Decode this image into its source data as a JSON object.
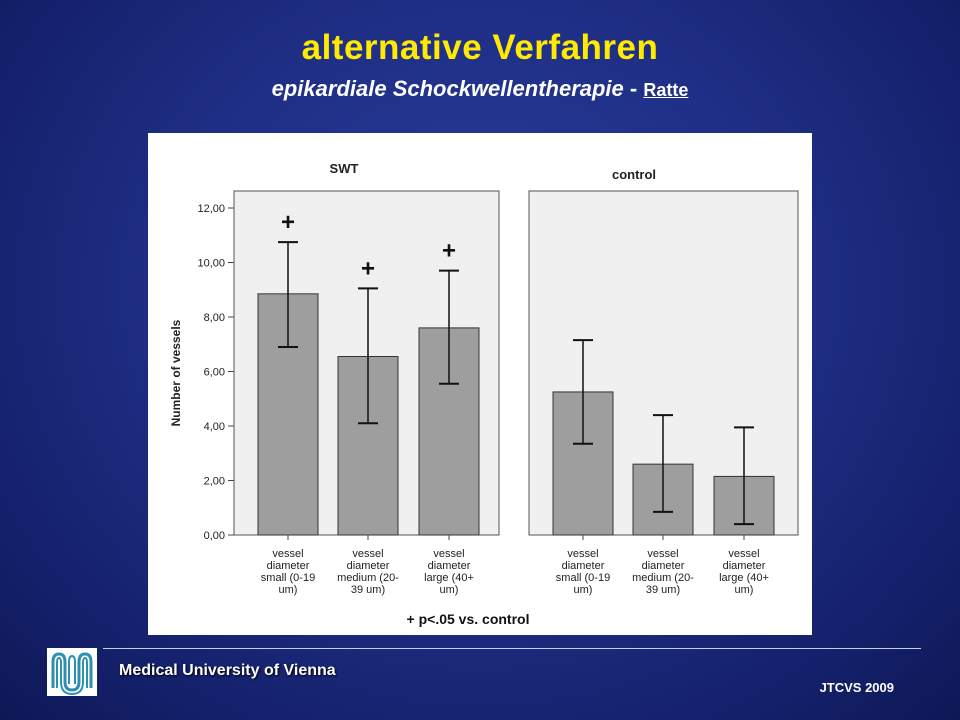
{
  "slide": {
    "title": "alternative Verfahren",
    "subtitle_main": "epikardiale Schockwellentherapie",
    "subtitle_sep": " - ",
    "subtitle_link": "Ratte",
    "footer_left": "Medical University of Vienna",
    "footer_right": "JTCVS 2009"
  },
  "chart_data": {
    "type": "bar",
    "ylabel": "Number of vessels",
    "ylim": [
      0,
      13
    ],
    "yticks": [
      "0,00",
      "2,00",
      "4,00",
      "6,00",
      "8,00",
      "10,00",
      "12,00"
    ],
    "footnote": "+ p<.05 vs. control",
    "panels": [
      {
        "name": "SWT",
        "categories": [
          [
            "vessel",
            "diameter",
            "small (0-19",
            "um)"
          ],
          [
            "vessel",
            "diameter",
            "medium (20-",
            "39 um)"
          ],
          [
            "vessel",
            "diameter",
            "large (40+",
            "um)"
          ]
        ],
        "values": [
          8.85,
          6.55,
          7.6
        ],
        "err_low": [
          6.9,
          4.1,
          5.55
        ],
        "err_high": [
          10.75,
          9.05,
          9.7
        ],
        "markers": [
          "+",
          "+",
          "+"
        ]
      },
      {
        "name": "control",
        "categories": [
          [
            "vessel",
            "diameter",
            "small (0-19",
            "um)"
          ],
          [
            "vessel",
            "diameter",
            "medium (20-",
            "39 um)"
          ],
          [
            "vessel",
            "diameter",
            "large (40+",
            "um)"
          ]
        ],
        "values": [
          5.25,
          2.6,
          2.15
        ],
        "err_low": [
          3.35,
          0.85,
          0.4
        ],
        "err_high": [
          7.15,
          4.4,
          3.95
        ],
        "markers": [
          "",
          "",
          ""
        ]
      }
    ],
    "colors": {
      "bar": "#9e9e9e",
      "panel_bg": "#f0f0f0",
      "frame": "#555555"
    }
  }
}
